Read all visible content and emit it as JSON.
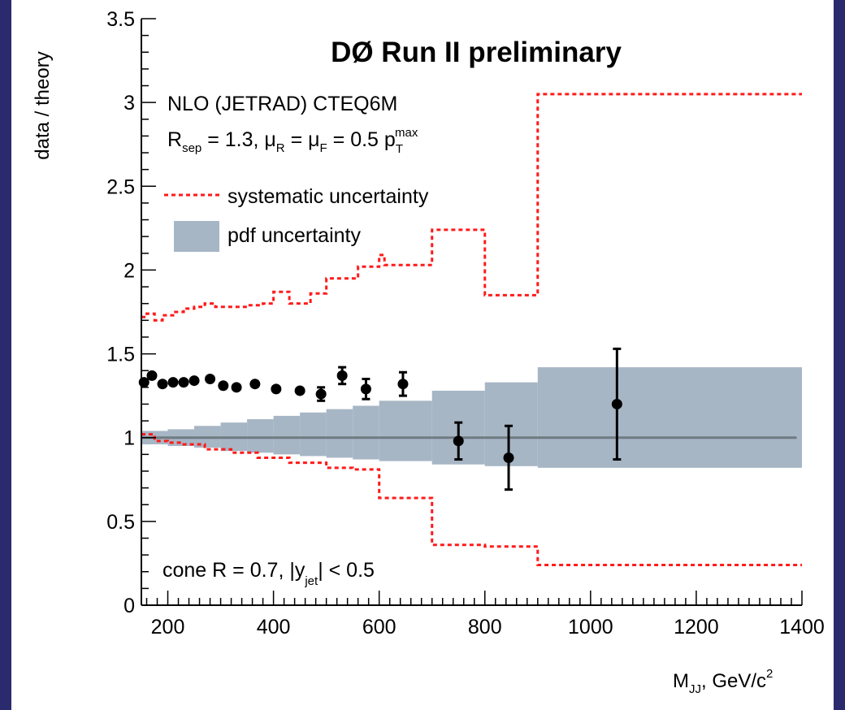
{
  "chart_data": {
    "type": "scatter",
    "title": "DØ Run II preliminary",
    "annotations": {
      "line1": "NLO (JETRAD) CTEQ6M",
      "line2": {
        "R": "R",
        "R_sub": "sep",
        "r_val": " = 1.3,  ",
        "mu1": "μ",
        "mu1_sub": "R",
        "eq1": " = ",
        "mu2": "μ",
        "mu2_sub": "F",
        "eq2": " = 0.5 p",
        "pt_sub": "T",
        "pt_sup": "max"
      },
      "cone": {
        "pre": "cone R = 0.7, |y",
        "sub": "jet",
        "post": "| < 0.5"
      }
    },
    "xlabel": {
      "main": "M",
      "sub": "JJ",
      "post": ", GeV/c",
      "sup": "2"
    },
    "ylabel": "data / theory",
    "xlim": [
      150,
      1400
    ],
    "ylim": [
      0,
      3.5
    ],
    "x_ticks": [
      200,
      400,
      600,
      800,
      1000,
      1200,
      1400
    ],
    "y_ticks": [
      {
        "v": 0,
        "label": "0"
      },
      {
        "v": 0.5,
        "label": "0.5"
      },
      {
        "v": 1,
        "label": "1"
      },
      {
        "v": 1.5,
        "label": "1.5"
      },
      {
        "v": 2,
        "label": "2"
      },
      {
        "v": 2.5,
        "label": "2.5"
      },
      {
        "v": 3,
        "label": "3"
      },
      {
        "v": 3.5,
        "label": "3.5"
      }
    ],
    "legend": [
      {
        "key": "systematic",
        "label": "systematic uncertainty",
        "color": "#ff1a1a",
        "style": "dashed"
      },
      {
        "key": "pdf",
        "label": "pdf uncertainty",
        "color": "#a7b6c5",
        "style": "fill"
      }
    ],
    "reference_line": {
      "y": 1.0,
      "color": "#6f7a82"
    },
    "points": [
      {
        "x": 155,
        "y": 1.33,
        "err": 0
      },
      {
        "x": 170,
        "y": 1.37,
        "err": 0
      },
      {
        "x": 190,
        "y": 1.32,
        "err": 0
      },
      {
        "x": 210,
        "y": 1.33,
        "err": 0
      },
      {
        "x": 230,
        "y": 1.33,
        "err": 0
      },
      {
        "x": 250,
        "y": 1.34,
        "err": 0
      },
      {
        "x": 280,
        "y": 1.35,
        "err": 0
      },
      {
        "x": 305,
        "y": 1.31,
        "err": 0
      },
      {
        "x": 330,
        "y": 1.3,
        "err": 0
      },
      {
        "x": 365,
        "y": 1.32,
        "err": 0
      },
      {
        "x": 405,
        "y": 1.29,
        "err": 0
      },
      {
        "x": 450,
        "y": 1.28,
        "err": 0
      },
      {
        "x": 490,
        "y": 1.26,
        "err": 0.04
      },
      {
        "x": 530,
        "y": 1.37,
        "err": 0.05
      },
      {
        "x": 575,
        "y": 1.29,
        "err": 0.06
      },
      {
        "x": 645,
        "y": 1.32,
        "err": 0.07
      },
      {
        "x": 750,
        "y": 0.98,
        "err": 0.11
      },
      {
        "x": 845,
        "y": 0.88,
        "err": 0.19
      },
      {
        "x": 1050,
        "y": 1.2,
        "err": 0.33
      }
    ],
    "systematic_upper": [
      [
        150,
        1.72
      ],
      [
        160,
        1.74
      ],
      [
        175,
        1.7
      ],
      [
        190,
        1.73
      ],
      [
        210,
        1.75
      ],
      [
        230,
        1.77
      ],
      [
        250,
        1.78
      ],
      [
        270,
        1.8
      ],
      [
        290,
        1.78
      ],
      [
        320,
        1.78
      ],
      [
        355,
        1.79
      ],
      [
        380,
        1.8
      ],
      [
        400,
        1.87
      ],
      [
        430,
        1.8
      ],
      [
        470,
        1.86
      ],
      [
        500,
        1.95
      ],
      [
        560,
        2.02
      ],
      [
        600,
        2.09
      ],
      [
        610,
        2.03
      ],
      [
        700,
        2.24
      ],
      [
        800,
        1.85
      ],
      [
        900,
        3.05
      ],
      [
        1400,
        3.05
      ]
    ],
    "systematic_lower": [
      [
        150,
        1.02
      ],
      [
        175,
        0.98
      ],
      [
        200,
        0.97
      ],
      [
        230,
        0.96
      ],
      [
        270,
        0.93
      ],
      [
        320,
        0.91
      ],
      [
        370,
        0.88
      ],
      [
        430,
        0.85
      ],
      [
        500,
        0.82
      ],
      [
        550,
        0.81
      ],
      [
        600,
        0.64
      ],
      [
        700,
        0.36
      ],
      [
        800,
        0.35
      ],
      [
        900,
        0.24
      ],
      [
        1400,
        0.24
      ]
    ],
    "pdf_band": [
      [
        150,
        1.04,
        0.96
      ],
      [
        200,
        1.05,
        0.95
      ],
      [
        250,
        1.07,
        0.94
      ],
      [
        300,
        1.09,
        0.92
      ],
      [
        350,
        1.11,
        0.91
      ],
      [
        400,
        1.13,
        0.9
      ],
      [
        450,
        1.15,
        0.89
      ],
      [
        500,
        1.17,
        0.88
      ],
      [
        550,
        1.19,
        0.87
      ],
      [
        600,
        1.22,
        0.86
      ],
      [
        700,
        1.28,
        0.84
      ],
      [
        800,
        1.33,
        0.83
      ],
      [
        900,
        1.42,
        0.82
      ],
      [
        1400,
        1.42,
        0.82
      ]
    ]
  }
}
